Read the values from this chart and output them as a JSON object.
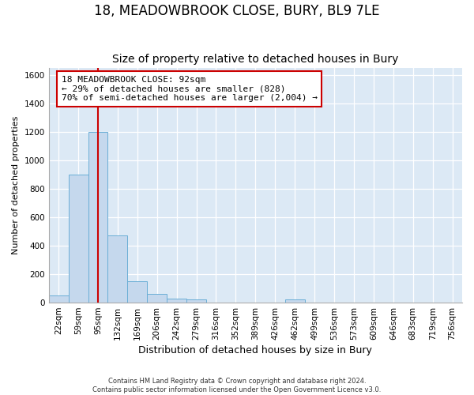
{
  "title": "18, MEADOWBROOK CLOSE, BURY, BL9 7LE",
  "subtitle": "Size of property relative to detached houses in Bury",
  "xlabel": "Distribution of detached houses by size in Bury",
  "ylabel": "Number of detached properties",
  "footer_line1": "Contains HM Land Registry data © Crown copyright and database right 2024.",
  "footer_line2": "Contains public sector information licensed under the Open Government Licence v3.0.",
  "bin_labels": [
    "22sqm",
    "59sqm",
    "95sqm",
    "132sqm",
    "169sqm",
    "206sqm",
    "242sqm",
    "279sqm",
    "316sqm",
    "352sqm",
    "389sqm",
    "426sqm",
    "462sqm",
    "499sqm",
    "536sqm",
    "573sqm",
    "609sqm",
    "646sqm",
    "683sqm",
    "719sqm",
    "756sqm"
  ],
  "bar_values": [
    50,
    900,
    1200,
    470,
    150,
    60,
    30,
    25,
    0,
    0,
    0,
    0,
    20,
    0,
    0,
    0,
    0,
    0,
    0,
    0,
    0
  ],
  "bar_color": "#c5d8ed",
  "bar_edge_color": "#6aaed6",
  "property_line_x": 2.0,
  "property_line_color": "#cc0000",
  "annotation_text": "18 MEADOWBROOK CLOSE: 92sqm\n← 29% of detached houses are smaller (828)\n70% of semi-detached houses are larger (2,004) →",
  "annotation_box_facecolor": "#ffffff",
  "annotation_box_edgecolor": "#cc0000",
  "ylim": [
    0,
    1650
  ],
  "yticks": [
    0,
    200,
    400,
    600,
    800,
    1000,
    1200,
    1400,
    1600
  ],
  "plot_bg_color": "#dce9f5",
  "fig_bg_color": "#ffffff",
  "grid_color": "#ffffff",
  "title_fontsize": 12,
  "subtitle_fontsize": 10,
  "annotation_fontsize": 8,
  "ylabel_fontsize": 8,
  "xlabel_fontsize": 9,
  "tick_fontsize": 7.5
}
